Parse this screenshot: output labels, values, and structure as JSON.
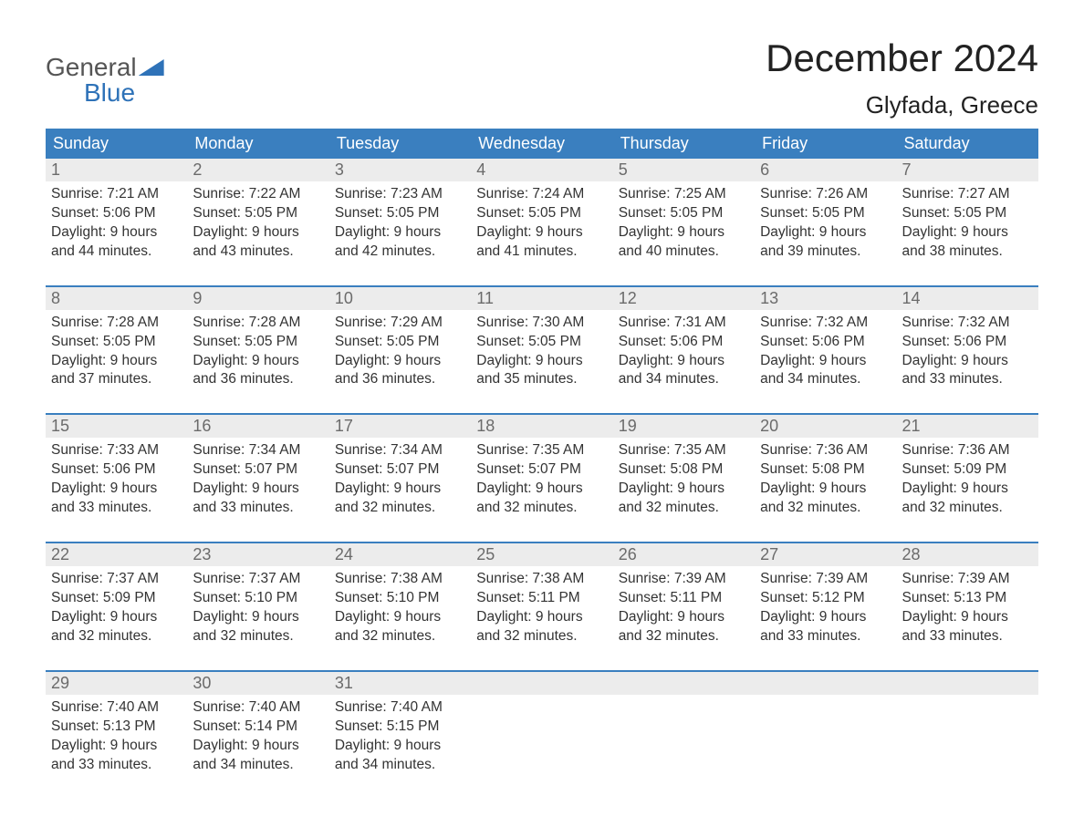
{
  "logo": {
    "top": "General",
    "bottom": "Blue"
  },
  "title": "December 2024",
  "location": "Glyfada, Greece",
  "colors": {
    "header_bg": "#3a7fbf",
    "header_text": "#ffffff",
    "daynum_bg": "#ececec",
    "daynum_text": "#6b6b6b",
    "body_text": "#333333",
    "week_border": "#3a7fbf",
    "logo_accent": "#2e72b8",
    "logo_gray": "#555555"
  },
  "day_headers": [
    "Sunday",
    "Monday",
    "Tuesday",
    "Wednesday",
    "Thursday",
    "Friday",
    "Saturday"
  ],
  "weeks": [
    [
      {
        "n": "1",
        "sr": "Sunrise: 7:21 AM",
        "ss": "Sunset: 5:06 PM",
        "d1": "Daylight: 9 hours",
        "d2": "and 44 minutes."
      },
      {
        "n": "2",
        "sr": "Sunrise: 7:22 AM",
        "ss": "Sunset: 5:05 PM",
        "d1": "Daylight: 9 hours",
        "d2": "and 43 minutes."
      },
      {
        "n": "3",
        "sr": "Sunrise: 7:23 AM",
        "ss": "Sunset: 5:05 PM",
        "d1": "Daylight: 9 hours",
        "d2": "and 42 minutes."
      },
      {
        "n": "4",
        "sr": "Sunrise: 7:24 AM",
        "ss": "Sunset: 5:05 PM",
        "d1": "Daylight: 9 hours",
        "d2": "and 41 minutes."
      },
      {
        "n": "5",
        "sr": "Sunrise: 7:25 AM",
        "ss": "Sunset: 5:05 PM",
        "d1": "Daylight: 9 hours",
        "d2": "and 40 minutes."
      },
      {
        "n": "6",
        "sr": "Sunrise: 7:26 AM",
        "ss": "Sunset: 5:05 PM",
        "d1": "Daylight: 9 hours",
        "d2": "and 39 minutes."
      },
      {
        "n": "7",
        "sr": "Sunrise: 7:27 AM",
        "ss": "Sunset: 5:05 PM",
        "d1": "Daylight: 9 hours",
        "d2": "and 38 minutes."
      }
    ],
    [
      {
        "n": "8",
        "sr": "Sunrise: 7:28 AM",
        "ss": "Sunset: 5:05 PM",
        "d1": "Daylight: 9 hours",
        "d2": "and 37 minutes."
      },
      {
        "n": "9",
        "sr": "Sunrise: 7:28 AM",
        "ss": "Sunset: 5:05 PM",
        "d1": "Daylight: 9 hours",
        "d2": "and 36 minutes."
      },
      {
        "n": "10",
        "sr": "Sunrise: 7:29 AM",
        "ss": "Sunset: 5:05 PM",
        "d1": "Daylight: 9 hours",
        "d2": "and 36 minutes."
      },
      {
        "n": "11",
        "sr": "Sunrise: 7:30 AM",
        "ss": "Sunset: 5:05 PM",
        "d1": "Daylight: 9 hours",
        "d2": "and 35 minutes."
      },
      {
        "n": "12",
        "sr": "Sunrise: 7:31 AM",
        "ss": "Sunset: 5:06 PM",
        "d1": "Daylight: 9 hours",
        "d2": "and 34 minutes."
      },
      {
        "n": "13",
        "sr": "Sunrise: 7:32 AM",
        "ss": "Sunset: 5:06 PM",
        "d1": "Daylight: 9 hours",
        "d2": "and 34 minutes."
      },
      {
        "n": "14",
        "sr": "Sunrise: 7:32 AM",
        "ss": "Sunset: 5:06 PM",
        "d1": "Daylight: 9 hours",
        "d2": "and 33 minutes."
      }
    ],
    [
      {
        "n": "15",
        "sr": "Sunrise: 7:33 AM",
        "ss": "Sunset: 5:06 PM",
        "d1": "Daylight: 9 hours",
        "d2": "and 33 minutes."
      },
      {
        "n": "16",
        "sr": "Sunrise: 7:34 AM",
        "ss": "Sunset: 5:07 PM",
        "d1": "Daylight: 9 hours",
        "d2": "and 33 minutes."
      },
      {
        "n": "17",
        "sr": "Sunrise: 7:34 AM",
        "ss": "Sunset: 5:07 PM",
        "d1": "Daylight: 9 hours",
        "d2": "and 32 minutes."
      },
      {
        "n": "18",
        "sr": "Sunrise: 7:35 AM",
        "ss": "Sunset: 5:07 PM",
        "d1": "Daylight: 9 hours",
        "d2": "and 32 minutes."
      },
      {
        "n": "19",
        "sr": "Sunrise: 7:35 AM",
        "ss": "Sunset: 5:08 PM",
        "d1": "Daylight: 9 hours",
        "d2": "and 32 minutes."
      },
      {
        "n": "20",
        "sr": "Sunrise: 7:36 AM",
        "ss": "Sunset: 5:08 PM",
        "d1": "Daylight: 9 hours",
        "d2": "and 32 minutes."
      },
      {
        "n": "21",
        "sr": "Sunrise: 7:36 AM",
        "ss": "Sunset: 5:09 PM",
        "d1": "Daylight: 9 hours",
        "d2": "and 32 minutes."
      }
    ],
    [
      {
        "n": "22",
        "sr": "Sunrise: 7:37 AM",
        "ss": "Sunset: 5:09 PM",
        "d1": "Daylight: 9 hours",
        "d2": "and 32 minutes."
      },
      {
        "n": "23",
        "sr": "Sunrise: 7:37 AM",
        "ss": "Sunset: 5:10 PM",
        "d1": "Daylight: 9 hours",
        "d2": "and 32 minutes."
      },
      {
        "n": "24",
        "sr": "Sunrise: 7:38 AM",
        "ss": "Sunset: 5:10 PM",
        "d1": "Daylight: 9 hours",
        "d2": "and 32 minutes."
      },
      {
        "n": "25",
        "sr": "Sunrise: 7:38 AM",
        "ss": "Sunset: 5:11 PM",
        "d1": "Daylight: 9 hours",
        "d2": "and 32 minutes."
      },
      {
        "n": "26",
        "sr": "Sunrise: 7:39 AM",
        "ss": "Sunset: 5:11 PM",
        "d1": "Daylight: 9 hours",
        "d2": "and 32 minutes."
      },
      {
        "n": "27",
        "sr": "Sunrise: 7:39 AM",
        "ss": "Sunset: 5:12 PM",
        "d1": "Daylight: 9 hours",
        "d2": "and 33 minutes."
      },
      {
        "n": "28",
        "sr": "Sunrise: 7:39 AM",
        "ss": "Sunset: 5:13 PM",
        "d1": "Daylight: 9 hours",
        "d2": "and 33 minutes."
      }
    ],
    [
      {
        "n": "29",
        "sr": "Sunrise: 7:40 AM",
        "ss": "Sunset: 5:13 PM",
        "d1": "Daylight: 9 hours",
        "d2": "and 33 minutes."
      },
      {
        "n": "30",
        "sr": "Sunrise: 7:40 AM",
        "ss": "Sunset: 5:14 PM",
        "d1": "Daylight: 9 hours",
        "d2": "and 34 minutes."
      },
      {
        "n": "31",
        "sr": "Sunrise: 7:40 AM",
        "ss": "Sunset: 5:15 PM",
        "d1": "Daylight: 9 hours",
        "d2": "and 34 minutes."
      },
      {
        "empty": true
      },
      {
        "empty": true
      },
      {
        "empty": true
      },
      {
        "empty": true
      }
    ]
  ]
}
